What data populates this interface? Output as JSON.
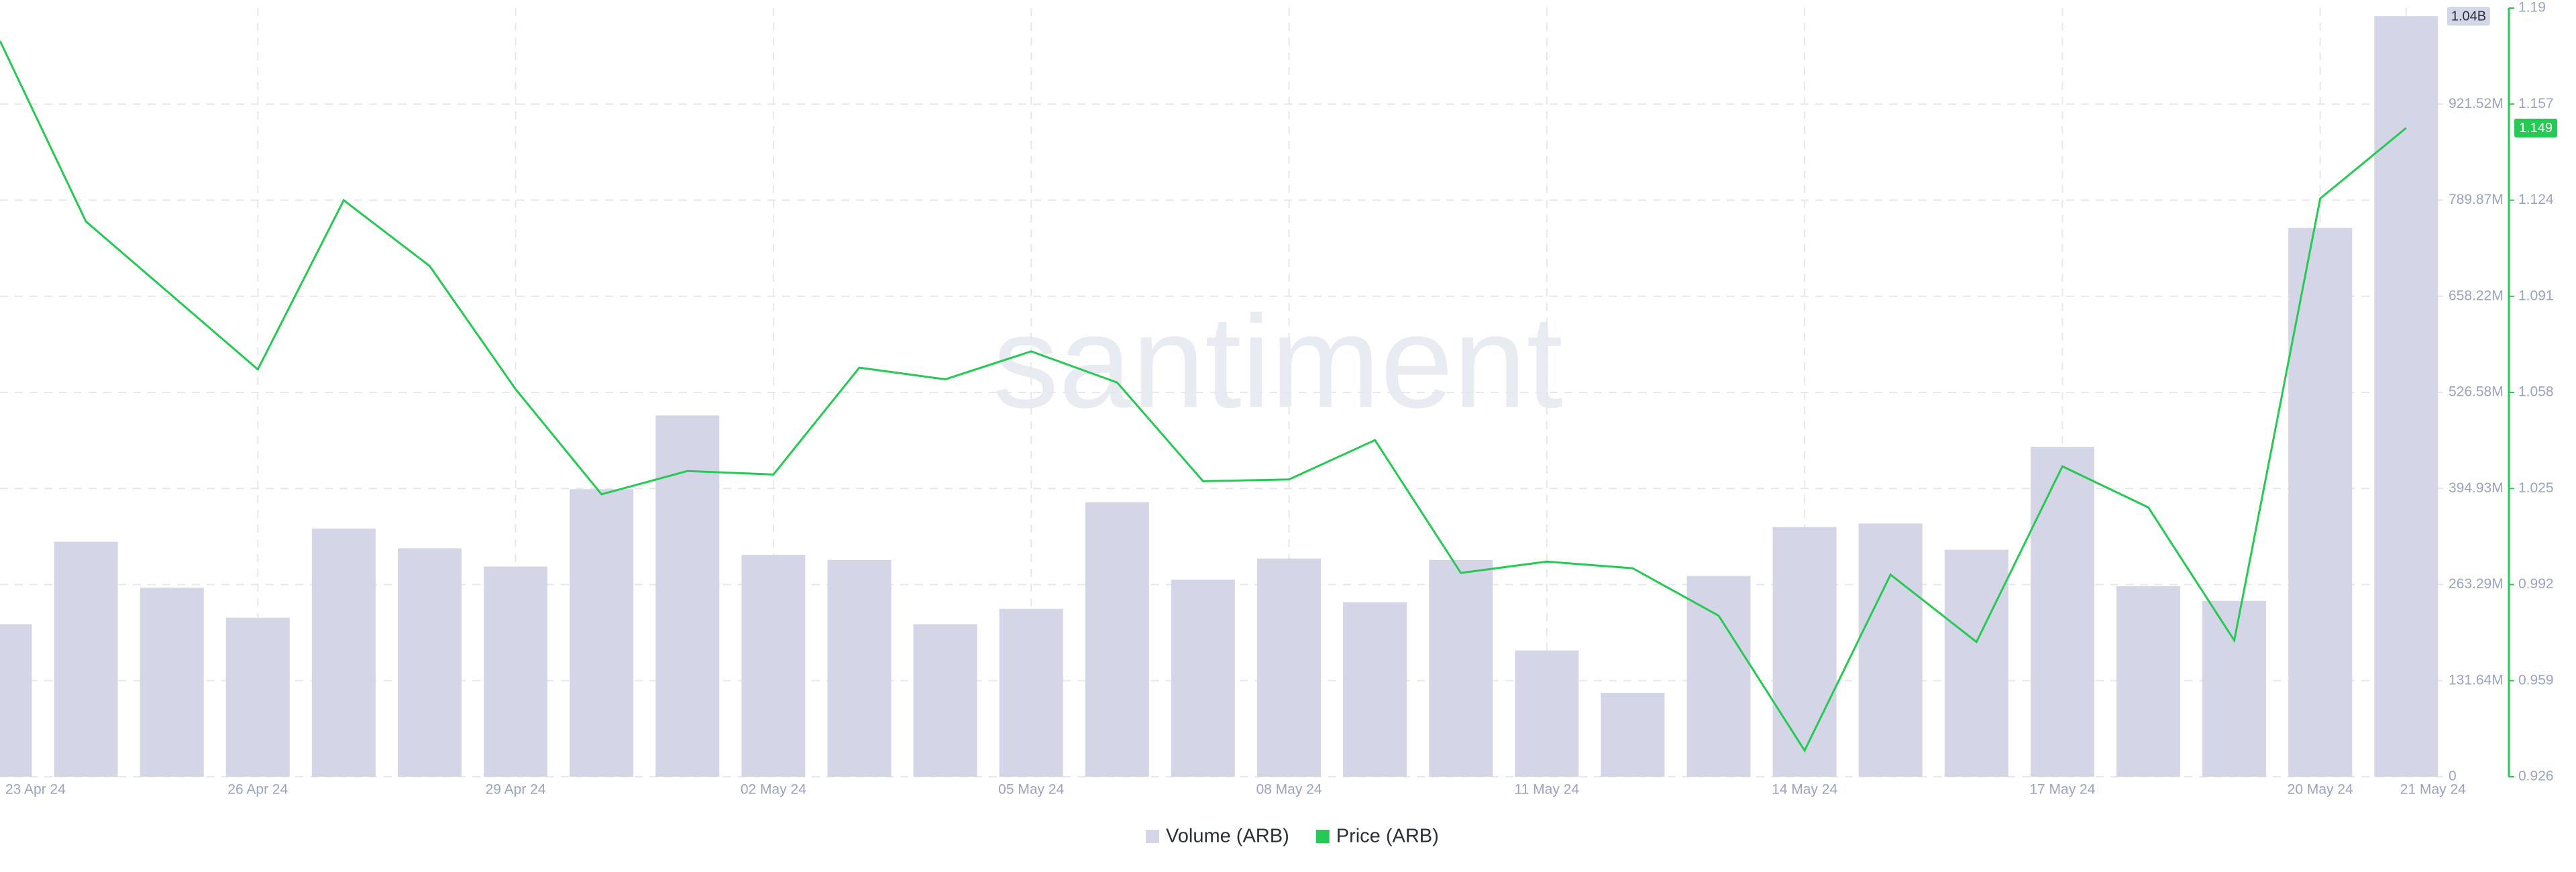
{
  "chart_data": {
    "type": "bar-line",
    "watermark": "santiment",
    "categories": [
      "23 Apr 24",
      null,
      null,
      "26 Apr 24",
      null,
      null,
      "29 Apr 24",
      null,
      null,
      "02 May 24",
      null,
      null,
      "05 May 24",
      null,
      null,
      "08 May 24",
      null,
      null,
      "11 May 24",
      null,
      null,
      "14 May 24",
      null,
      null,
      "17 May 24",
      null,
      null,
      "20 May 24",
      "21 May 24"
    ],
    "series": [
      {
        "name": "Volume (ARB)",
        "type": "bar",
        "color": "#d4d6e7",
        "axis": "y",
        "values": [
          209000000,
          322000000,
          259000000,
          218000000,
          340000000,
          313000000,
          288000000,
          394000000,
          495000000,
          304000000,
          297000000,
          209000000,
          230000000,
          376000000,
          270000000,
          299000000,
          239000000,
          297000000,
          173000000,
          115000000,
          275000000,
          342000000,
          347000000,
          311000000,
          452000000,
          261000000,
          241000000,
          752000000,
          1042000000
        ],
        "last_label": "1.04B"
      },
      {
        "name": "Price (ARB)",
        "type": "line",
        "color": "#26c953",
        "axis": "y2",
        "values": [
          1.1787,
          1.1167,
          1.0913,
          1.0659,
          1.124,
          1.1014,
          1.0591,
          1.023,
          1.031,
          1.0298,
          1.0665,
          1.0625,
          1.0721,
          1.0614,
          1.0275,
          1.0281,
          1.0416,
          0.996,
          0.9999,
          0.9976,
          0.9813,
          0.935,
          0.9954,
          0.9723,
          1.0326,
          1.0185,
          0.9728,
          1.1246,
          1.1488
        ],
        "last_label": "1.149"
      }
    ],
    "ylim": [
      0,
      1053160000
    ],
    "yticks": [
      0,
      {
        "value": 131640000,
        "label": "131.64M"
      },
      {
        "value": 263290000,
        "label": "263.29M"
      },
      {
        "value": 394930000,
        "label": "394.93M"
      },
      {
        "value": 526580000,
        "label": "526.58M"
      },
      {
        "value": 658220000,
        "label": "658.22M"
      },
      {
        "value": 789870000,
        "label": "789.87M"
      },
      {
        "value": 921520000,
        "label": "921.52M"
      }
    ],
    "y2lim": [
      0.926,
      1.19
    ],
    "y2ticks": [
      0.926,
      0.959,
      0.992,
      1.025,
      1.058,
      1.091,
      1.124,
      1.157,
      1.19
    ],
    "grid": true,
    "legend": "bottom"
  }
}
